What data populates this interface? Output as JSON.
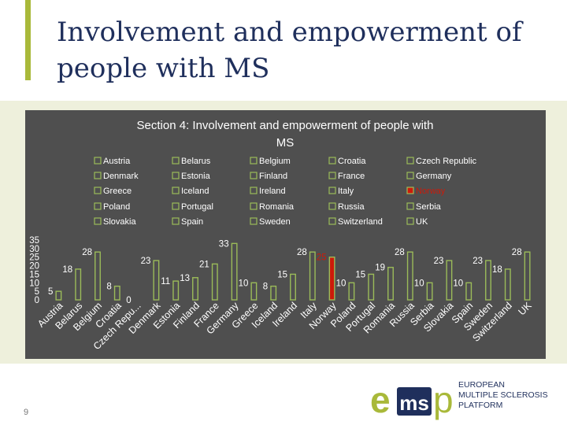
{
  "slide": {
    "title": "Involvement and empowerment of people with MS",
    "page_number": "9"
  },
  "logo": {
    "mark": "emsp",
    "lines": [
      "EUROPEAN",
      "MULTIPLE SCLEROSIS",
      "PLATFORM"
    ],
    "colors": {
      "e": "#a9b93a",
      "ms": "#1f2f5c",
      "p": "#a9b93a",
      "text": "#1f2f5c"
    }
  },
  "chart_data": {
    "type": "bar",
    "title": "Section 4: Involvement and empowerment of people with MS",
    "categories": [
      "Austria",
      "Belarus",
      "Belgium",
      "Croatia",
      "Czech Repu...",
      "Denmark",
      "Estonia",
      "Finland",
      "France",
      "Germany",
      "Greece",
      "Iceland",
      "Ireland",
      "Italy",
      "Norway",
      "Poland",
      "Portugal",
      "Romania",
      "Russia",
      "Serbia",
      "Slovakia",
      "Spain",
      "Sweden",
      "Switzerland",
      "UK"
    ],
    "legend_entries": [
      "Austria",
      "Belarus",
      "Belgium",
      "Croatia",
      "Czech Republic",
      "Denmark",
      "Estonia",
      "Finland",
      "France",
      "Germany",
      "Greece",
      "Iceland",
      "Ireland",
      "Italy",
      "Norway",
      "Poland",
      "Portugal",
      "Romania",
      "Russia",
      "Serbia",
      "Slovakia",
      "Spain",
      "Sweden",
      "Switzerland",
      "UK"
    ],
    "values": [
      5,
      18,
      28,
      8,
      0,
      23,
      11,
      13,
      21,
      33,
      10,
      8,
      15,
      28,
      25,
      10,
      15,
      19,
      28,
      10,
      23,
      10,
      23,
      18,
      28
    ],
    "highlight": "Norway",
    "highlight_color": "#cc1a0a",
    "bar_fill": "#4f4f4f",
    "bar_stroke": "#9bbb59",
    "ylim": [
      0,
      35
    ],
    "yticks": [
      0,
      5,
      10,
      15,
      20,
      25,
      30,
      35
    ],
    "legend_placement": "top",
    "grid": false,
    "xlabel": "",
    "ylabel": ""
  }
}
